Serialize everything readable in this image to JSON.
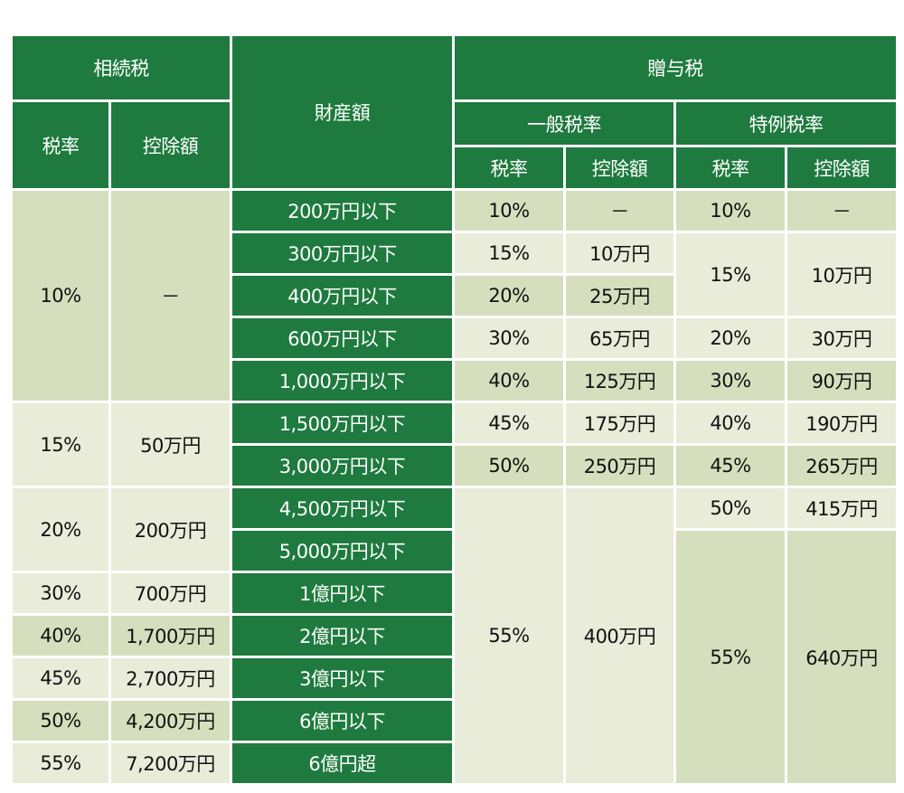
{
  "header": {
    "inheritance_tax": "相続税",
    "property_amount": "財産額",
    "gift_tax": "贈与税",
    "general_rate": "一般税率",
    "special_rate": "特例税率",
    "rate": "税率",
    "deduction": "控除額"
  },
  "colors": {
    "header_green": "#1e7a3e",
    "cell_light": "#e9ecd8",
    "cell_dark": "#d5dfbe"
  },
  "rows": [
    {
      "amount": "200万円以下",
      "gen_rate": "10%",
      "gen_ded": "－",
      "sp_rate": "10%",
      "sp_ded": "－"
    },
    {
      "amount": "300万円以下",
      "gen_rate": "15%",
      "gen_ded": "10万円"
    },
    {
      "amount": "400万円以下",
      "gen_rate": "20%",
      "gen_ded": "25万円"
    },
    {
      "amount": "600万円以下",
      "gen_rate": "30%",
      "gen_ded": "65万円",
      "sp_rate": "20%",
      "sp_ded": "30万円"
    },
    {
      "amount": "1,000万円以下",
      "gen_rate": "40%",
      "gen_ded": "125万円",
      "sp_rate": "30%",
      "sp_ded": "90万円"
    },
    {
      "amount": "1,500万円以下",
      "gen_rate": "45%",
      "gen_ded": "175万円",
      "sp_rate": "40%",
      "sp_ded": "190万円"
    },
    {
      "amount": "3,000万円以下",
      "gen_rate": "50%",
      "gen_ded": "250万円",
      "sp_rate": "45%",
      "sp_ded": "265万円"
    },
    {
      "amount": "4,500万円以下",
      "sp_rate": "50%",
      "sp_ded": "415万円"
    },
    {
      "amount": "5,000万円以下"
    },
    {
      "amount": "1億円以下"
    },
    {
      "amount": "2億円以下"
    },
    {
      "amount": "3億円以下"
    },
    {
      "amount": "6億円以下"
    },
    {
      "amount": "6億円超"
    }
  ],
  "inheritance": [
    {
      "rate": "10%",
      "deduction": "－"
    },
    {
      "rate": "15%",
      "deduction": "50万円"
    },
    {
      "rate": "20%",
      "deduction": "200万円"
    },
    {
      "rate": "30%",
      "deduction": "700万円"
    },
    {
      "rate": "40%",
      "deduction": "1,700万円"
    },
    {
      "rate": "45%",
      "deduction": "2,700万円"
    },
    {
      "rate": "50%",
      "deduction": "4,200万円"
    },
    {
      "rate": "55%",
      "deduction": "7,200万円"
    }
  ],
  "merged": {
    "sp_15_rate": "15%",
    "sp_15_ded": "10万円",
    "gen_55_rate": "55%",
    "gen_55_ded": "400万円",
    "sp_55_rate": "55%",
    "sp_55_ded": "640万円"
  }
}
